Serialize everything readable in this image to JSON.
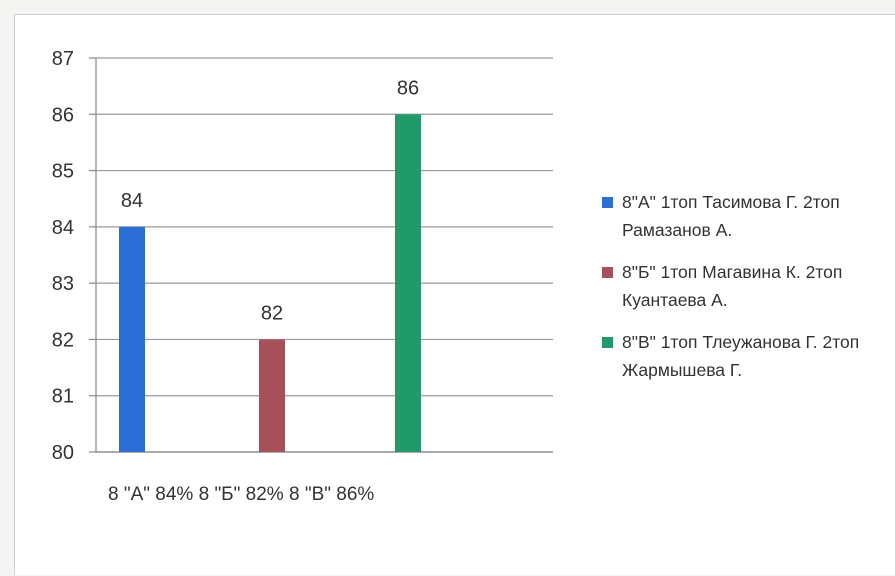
{
  "chart_data": {
    "type": "bar",
    "categories": [
      "8 \"А\" 84%",
      "8 \"Б\" 82%",
      "8 \"В\" 86%"
    ],
    "series": [
      {
        "name": "8\"А\" 1топ Тасимова Г. 2топ Рамазанов А.",
        "color": "#2b6fd6",
        "category_index": 0,
        "value": 84
      },
      {
        "name": "8\"Б\" 1топ Магавина К. 2топ Куантаева А.",
        "color": "#a8505a",
        "category_index": 1,
        "value": 82
      },
      {
        "name": "8\"В\" 1топ Тлеужанова Г. 2топ Жармышева Г.",
        "color": "#1f9a68",
        "category_index": 2,
        "value": 86
      }
    ],
    "ylim": [
      80,
      87
    ],
    "yticks": [
      "80",
      "81",
      "82",
      "83",
      "84",
      "85",
      "86",
      "87"
    ],
    "data_labels": [
      "84",
      "82",
      "86"
    ],
    "xlabel_text": "8 \"А\" 84% 8 \"Б\" 82% 8 \"В\" 86%",
    "title": "",
    "xlabel": "",
    "ylabel": "",
    "grid": true,
    "legend_position": "right"
  }
}
